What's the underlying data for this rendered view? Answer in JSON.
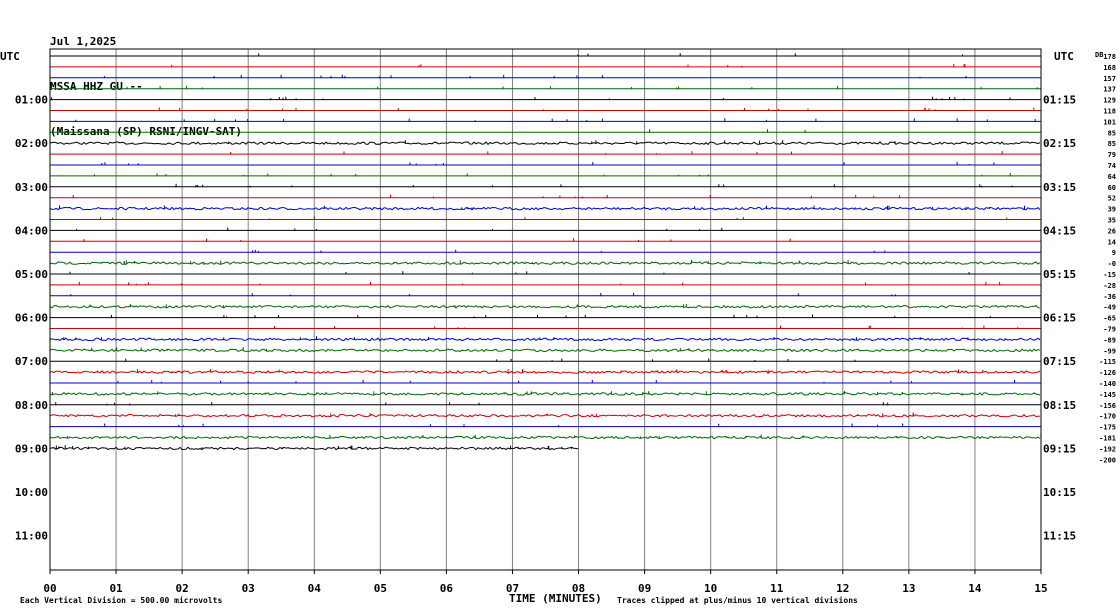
{
  "header": {
    "date": "Jul 1,2025",
    "station": "MSSA HHZ GU --",
    "network": "(Maissana (SP) RSNI/INGV-SAT)"
  },
  "chart_data": {
    "type": "line",
    "title": "MSSA HHZ GU --",
    "xlabel": "TIME (MINUTES)",
    "xlim": [
      0,
      15
    ],
    "x_ticks": [
      "00",
      "01",
      "02",
      "03",
      "04",
      "05",
      "06",
      "07",
      "08",
      "09",
      "10",
      "11",
      "12",
      "13",
      "14",
      "15"
    ],
    "left_axis_title": "UTC",
    "right_axis_title": "UTC",
    "left_hour_labels": [
      "01:00",
      "02:00",
      "03:00",
      "04:00",
      "05:00",
      "06:00",
      "07:00",
      "08:00",
      "09:00",
      "10:00",
      "11:00"
    ],
    "right_hour_labels": [
      "01:15",
      "02:15",
      "03:15",
      "04:15",
      "05:15",
      "06:15",
      "07:15",
      "08:15",
      "09:15",
      "10:15",
      "11:15"
    ],
    "trace_interval_minutes": 15,
    "trace_color_cycle": [
      "#000000",
      "#cc0000",
      "#0000cc",
      "#006600"
    ],
    "trace_count": 37,
    "last_trace_end_minute": 8.0,
    "noisy_traces": [
      8,
      14,
      19,
      23,
      26,
      27,
      29,
      31,
      33,
      35,
      36
    ],
    "right_scale_title": "DB",
    "right_scale_values": [
      "178",
      "168",
      "157",
      "137",
      "129",
      "118",
      "101",
      "85",
      "85",
      "79",
      "74",
      "64",
      "60",
      "52",
      "39",
      "35",
      "26",
      "14",
      "9",
      "-0",
      "-15",
      "-28",
      "-36",
      "-49",
      "-65",
      "-79",
      "-89",
      "-99",
      "-115",
      "-126",
      "-140",
      "-145",
      "-156",
      "-170",
      "-175",
      "-181",
      "-192",
      "-200"
    ],
    "footer_left": "Each Vertical Division =  500.00 microvolts",
    "footer_right": "Traces clipped at plus/minus 10 vertical divisions"
  }
}
